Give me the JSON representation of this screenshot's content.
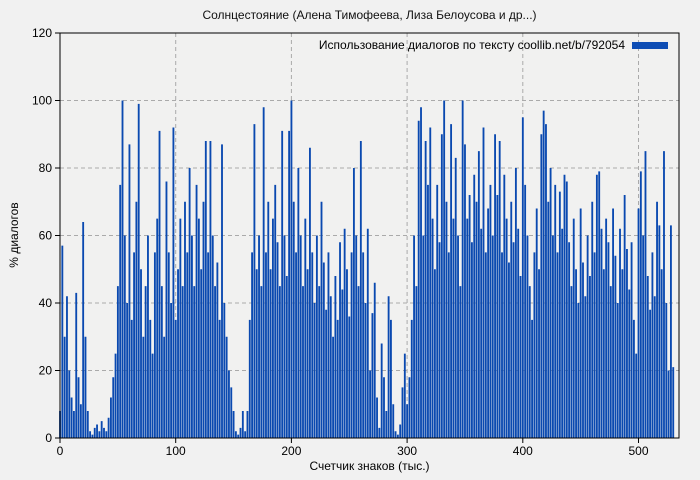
{
  "title": "Солнцестояние (Алена Тимофеева, Лиза Белоусова и др...)",
  "colors": {
    "bar": "#0a49b0",
    "legend_marker": "#0f4eb5",
    "background": "#f1f1f1",
    "plot_background": "#f1f1f0",
    "grid": "#aaaaaa",
    "axis": "#000000"
  },
  "chart_data": {
    "type": "bar",
    "title": "Солнцестояние (Алена Тимофеева, Лиза Белоусова и др...)",
    "xlabel": "Счетчик знаков (тыс.)",
    "ylabel": "% диалогов",
    "xlim": [
      0,
      535
    ],
    "ylim": [
      0,
      120
    ],
    "x_ticks": [
      0,
      100,
      200,
      300,
      400,
      500
    ],
    "y_ticks": [
      0,
      20,
      40,
      60,
      80,
      100,
      120
    ],
    "grid": true,
    "legend_position": "top-right",
    "series": [
      {
        "name": "Использование диалогов по тексту coollib.net/b/792054",
        "x_start": 0,
        "x_step": 2,
        "values": [
          8,
          57,
          30,
          42,
          20,
          12,
          8,
          43,
          18,
          10,
          64,
          30,
          8,
          2,
          1,
          3,
          4,
          2,
          5,
          3,
          2,
          6,
          12,
          18,
          25,
          45,
          75,
          100,
          60,
          40,
          87,
          35,
          55,
          70,
          99,
          50,
          30,
          45,
          60,
          35,
          25,
          55,
          65,
          91,
          45,
          30,
          76,
          55,
          40,
          92,
          35,
          50,
          65,
          45,
          70,
          55,
          80,
          60,
          45,
          75,
          65,
          50,
          70,
          88,
          55,
          88,
          60,
          45,
          52,
          35,
          87,
          40,
          30,
          20,
          15,
          8,
          2,
          1,
          3,
          8,
          2,
          8,
          35,
          55,
          93,
          50,
          60,
          45,
          98,
          55,
          70,
          50,
          65,
          75,
          58,
          45,
          91,
          60,
          48,
          91,
          100,
          70,
          55,
          80,
          60,
          45,
          65,
          50,
          86,
          55,
          40,
          60,
          45,
          70,
          52,
          38,
          55,
          42,
          30,
          48,
          35,
          58,
          44,
          62,
          50,
          36,
          55,
          80,
          60,
          45,
          88,
          55,
          40,
          62,
          20,
          37,
          46,
          12,
          3,
          28,
          18,
          8,
          42,
          35,
          10,
          2,
          1,
          4,
          15,
          25,
          10,
          18,
          35,
          60,
          45,
          94,
          98,
          60,
          88,
          75,
          92,
          65,
          50,
          75,
          58,
          90,
          100,
          70,
          55,
          93,
          65,
          83,
          60,
          45,
          100,
          87,
          65,
          72,
          58,
          78,
          70,
          85,
          62,
          92,
          55,
          68,
          75,
          60,
          90,
          72,
          88,
          55,
          78,
          65,
          52,
          70,
          58,
          80,
          62,
          48,
          95,
          75,
          60,
          45,
          35,
          55,
          68,
          50,
          90,
          97,
          93,
          70,
          80,
          60,
          75,
          55,
          73,
          62,
          78,
          76,
          58,
          45,
          65,
          50,
          40,
          68,
          52,
          42,
          60,
          48,
          70,
          55,
          78,
          79,
          62,
          50,
          65,
          58,
          45,
          68,
          54,
          40,
          62,
          50,
          72,
          56,
          44,
          58,
          35,
          25,
          68,
          79,
          60,
          85,
          48,
          38,
          55,
          42,
          70,
          63,
          50,
          85,
          40,
          20,
          63,
          21
        ]
      }
    ]
  }
}
